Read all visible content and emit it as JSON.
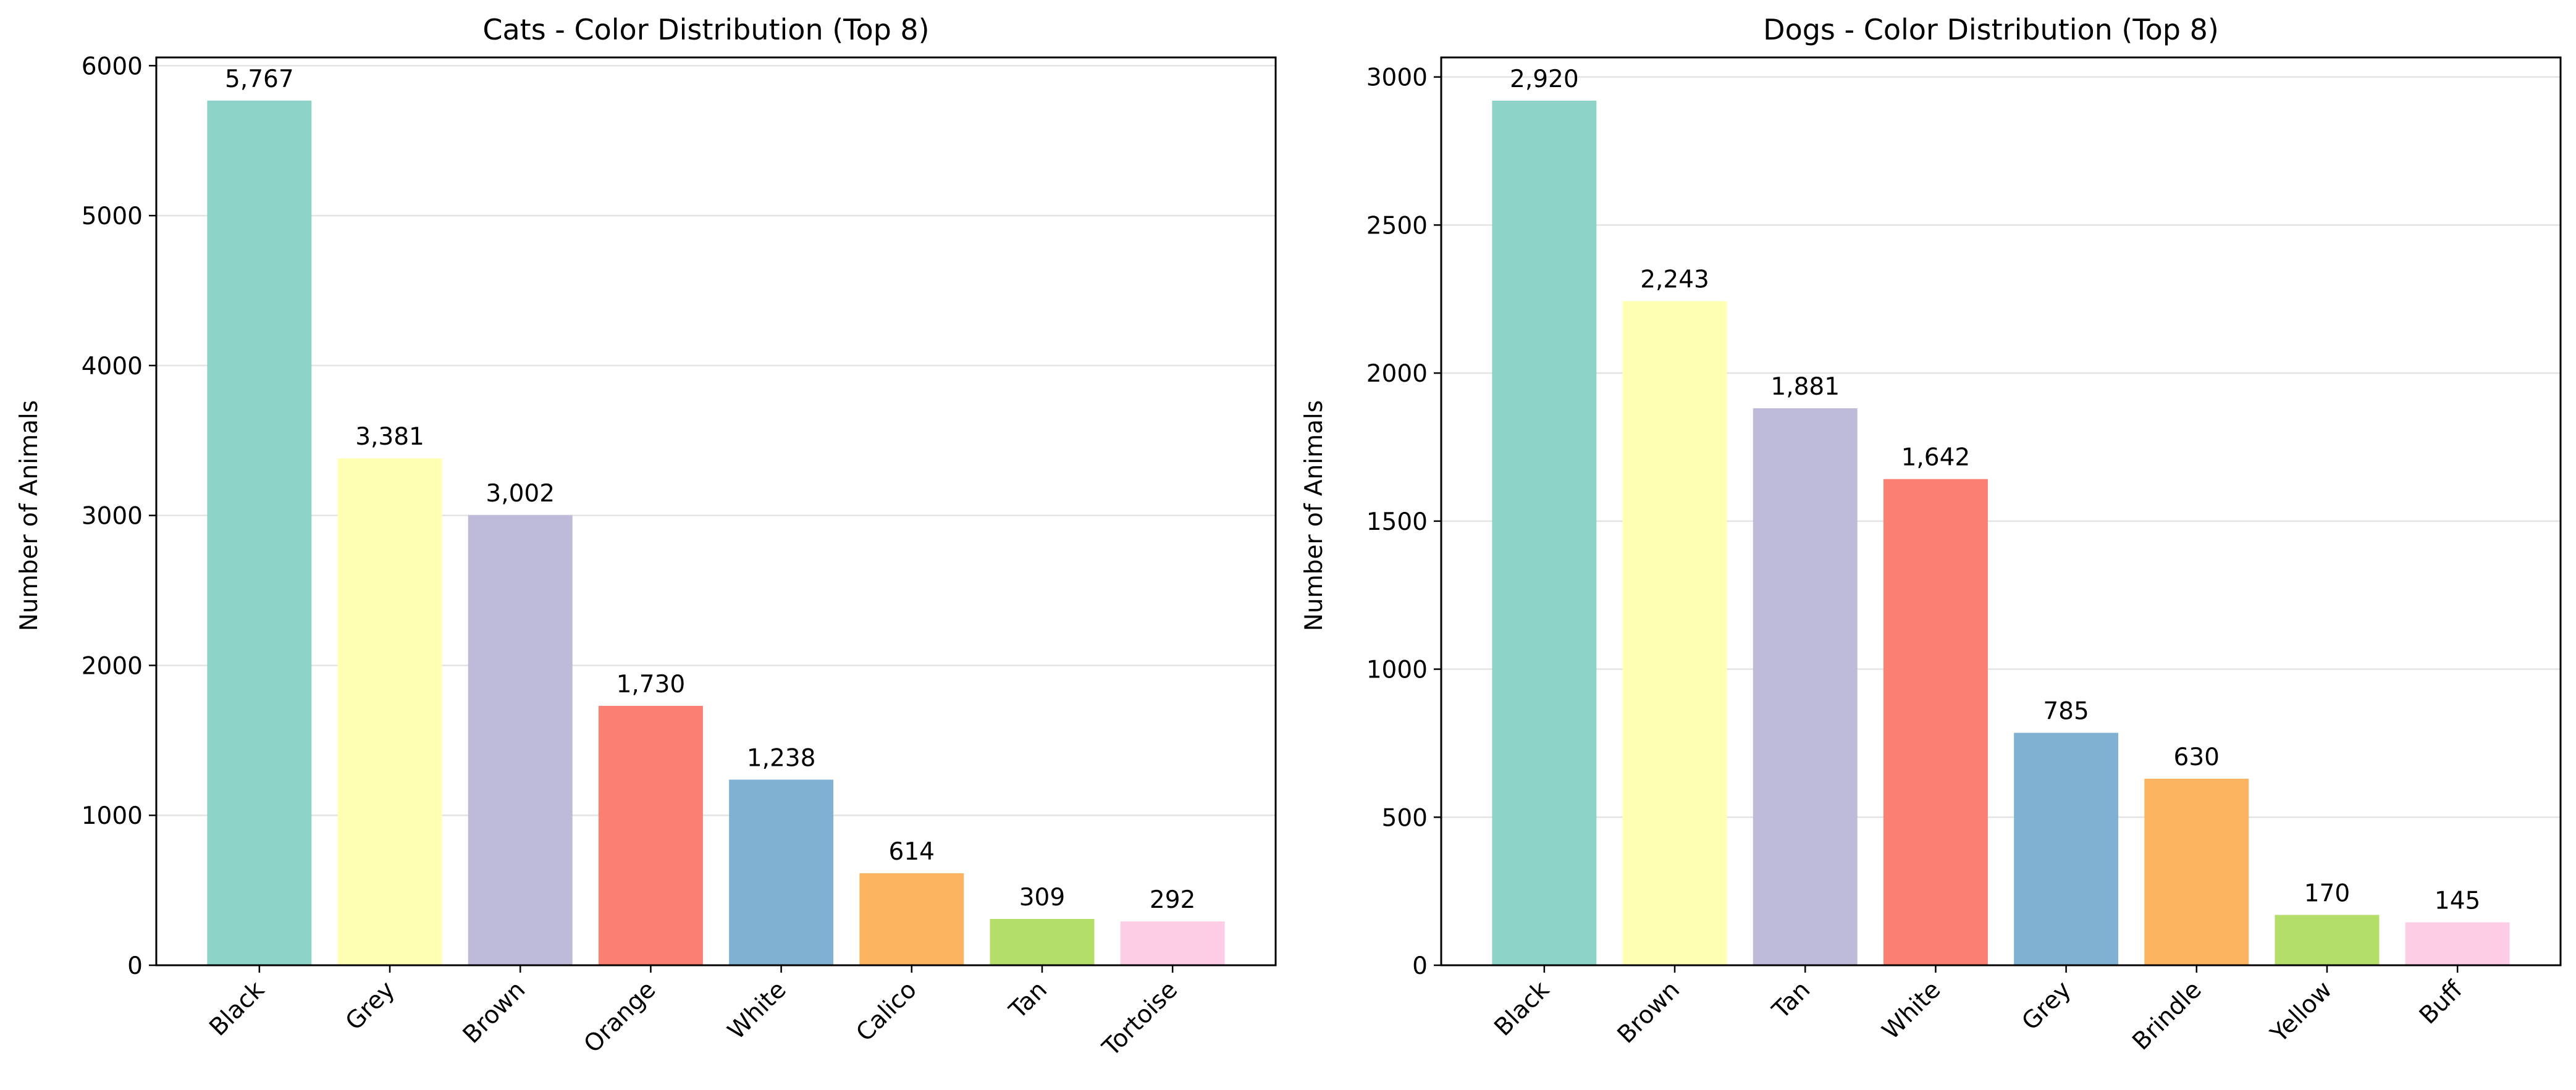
{
  "chart_data": [
    {
      "type": "bar",
      "title": "Cats - Color Distribution (Top 8)",
      "xlabel": "",
      "ylabel": "Number of Animals",
      "categories": [
        "Black",
        "Grey",
        "Brown",
        "Orange",
        "White",
        "Calico",
        "Tan",
        "Tortoise"
      ],
      "values": [
        5767,
        3381,
        3002,
        1730,
        1238,
        614,
        309,
        292
      ],
      "value_labels": [
        "5,767",
        "3,381",
        "3,002",
        "1,730",
        "1,238",
        "614",
        "309",
        "292"
      ],
      "ylim": [
        0,
        6055
      ],
      "yticks": [
        0,
        1000,
        2000,
        3000,
        4000,
        5000,
        6000
      ],
      "grid": true,
      "colors": [
        "#8dd3c7",
        "#ffffb3",
        "#bebada",
        "#fb8072",
        "#80b1d3",
        "#fdb462",
        "#b3de69",
        "#fccde5"
      ]
    },
    {
      "type": "bar",
      "title": "Dogs - Color Distribution (Top 8)",
      "xlabel": "",
      "ylabel": "Number of Animals",
      "categories": [
        "Black",
        "Brown",
        "Tan",
        "White",
        "Grey",
        "Brindle",
        "Yellow",
        "Buff"
      ],
      "values": [
        2920,
        2243,
        1881,
        1642,
        785,
        630,
        170,
        145
      ],
      "value_labels": [
        "2,920",
        "2,243",
        "1,881",
        "1,642",
        "785",
        "630",
        "170",
        "145"
      ],
      "ylim": [
        0,
        3066
      ],
      "yticks": [
        0,
        500,
        1000,
        1500,
        2000,
        2500,
        3000
      ],
      "grid": true,
      "colors": [
        "#8dd3c7",
        "#ffffb3",
        "#bebada",
        "#fb8072",
        "#80b1d3",
        "#fdb462",
        "#b3de69",
        "#fccde5"
      ]
    }
  ]
}
